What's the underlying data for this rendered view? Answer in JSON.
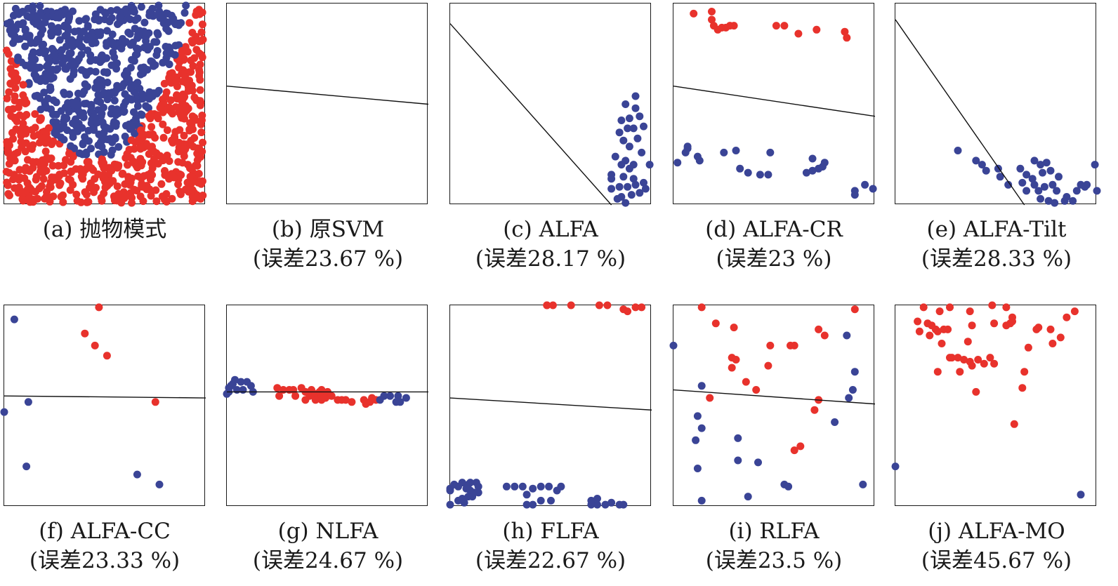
{
  "colors": {
    "red": "#e8322c",
    "blue": "#3a4496",
    "line": "#111111"
  },
  "chart_data": [
    {
      "type": "scatter",
      "caption": "(a) 抛物模式",
      "subtitle": "",
      "xlim": [
        0,
        1
      ],
      "ylim": [
        0,
        1
      ],
      "line": null,
      "blue_points": "generated-parabola-inner",
      "red_points": "generated-parabola-outer",
      "dataset": "parabola"
    },
    {
      "type": "scatter",
      "caption": "(b) 原SVM",
      "subtitle": "(误差23.67 %)",
      "xlim": [
        0,
        1
      ],
      "ylim": [
        0,
        1
      ],
      "line": [
        [
          0,
          0.41
        ],
        [
          1,
          0.5
        ]
      ],
      "red": [],
      "blue": []
    },
    {
      "type": "scatter",
      "caption": "(c) ALFA",
      "subtitle": "(误差28.17 %)",
      "xlim": [
        0,
        1
      ],
      "ylim": [
        0,
        1
      ],
      "line": [
        [
          0,
          0.1
        ],
        [
          0.8,
          1.0
        ]
      ],
      "red": [],
      "blue": [
        [
          0.92,
          0.46
        ],
        [
          0.87,
          0.5
        ],
        [
          0.92,
          0.52
        ],
        [
          0.85,
          0.58
        ],
        [
          0.94,
          0.56
        ],
        [
          0.89,
          0.57
        ],
        [
          0.96,
          0.61
        ],
        [
          0.88,
          0.62
        ],
        [
          0.91,
          0.62
        ],
        [
          0.84,
          0.64
        ],
        [
          0.93,
          0.67
        ],
        [
          0.86,
          0.68
        ],
        [
          0.89,
          0.71
        ],
        [
          0.95,
          0.74
        ],
        [
          0.82,
          0.76
        ],
        [
          0.87,
          0.78
        ],
        [
          0.91,
          0.8
        ],
        [
          0.85,
          0.8
        ],
        [
          0.89,
          0.82
        ],
        [
          0.99,
          0.8
        ],
        [
          0.8,
          0.85
        ],
        [
          0.86,
          0.86
        ],
        [
          0.91,
          0.87
        ],
        [
          0.96,
          0.89
        ],
        [
          0.92,
          0.9
        ],
        [
          0.84,
          0.91
        ],
        [
          0.88,
          0.91
        ],
        [
          0.97,
          0.92
        ],
        [
          0.8,
          0.92
        ],
        [
          0.9,
          0.95
        ],
        [
          0.85,
          0.96
        ],
        [
          0.94,
          0.94
        ],
        [
          0.87,
          0.99
        ],
        [
          0.8,
          0.87
        ],
        [
          0.83,
          0.97
        ]
      ]
    },
    {
      "type": "scatter",
      "caption": "(d) ALFA-CR",
      "subtitle": "(误差23 %)",
      "xlim": [
        0,
        1
      ],
      "ylim": [
        0,
        1
      ],
      "line": [
        [
          0,
          0.41
        ],
        [
          1,
          0.56
        ]
      ],
      "red": [
        [
          0.1,
          0.05
        ],
        [
          0.19,
          0.04
        ],
        [
          0.19,
          0.08
        ],
        [
          0.2,
          0.11
        ],
        [
          0.22,
          0.13
        ],
        [
          0.24,
          0.12
        ],
        [
          0.26,
          0.12
        ],
        [
          0.28,
          0.11
        ],
        [
          0.3,
          0.11
        ],
        [
          0.51,
          0.11
        ],
        [
          0.55,
          0.11
        ],
        [
          0.62,
          0.15
        ],
        [
          0.71,
          0.13
        ],
        [
          0.85,
          0.14
        ],
        [
          0.86,
          0.17
        ]
      ],
      "blue": [
        [
          0.07,
          0.71
        ],
        [
          0.06,
          0.74
        ],
        [
          0.07,
          0.72
        ],
        [
          0.12,
          0.76
        ],
        [
          0.13,
          0.78
        ],
        [
          0.25,
          0.74
        ],
        [
          0.31,
          0.73
        ],
        [
          0.48,
          0.74
        ],
        [
          0.33,
          0.82
        ],
        [
          0.37,
          0.84
        ],
        [
          0.43,
          0.85
        ],
        [
          0.47,
          0.85
        ],
        [
          0.66,
          0.84
        ],
        [
          0.69,
          0.83
        ],
        [
          0.72,
          0.82
        ],
        [
          0.74,
          0.81
        ],
        [
          0.69,
          0.77
        ],
        [
          0.75,
          0.79
        ],
        [
          0.02,
          0.79
        ],
        [
          0.9,
          0.93
        ],
        [
          0.95,
          0.9
        ],
        [
          0.99,
          0.92
        ],
        [
          0.9,
          0.95
        ]
      ]
    },
    {
      "type": "scatter",
      "caption": "(e) ALFA-Tilt",
      "subtitle": "(误差28.33 %)",
      "xlim": [
        0,
        1
      ],
      "ylim": [
        0,
        1
      ],
      "line": [
        [
          0,
          0.08
        ],
        [
          0.64,
          1.0
        ]
      ],
      "red": [],
      "blue": [
        [
          0.31,
          0.73
        ],
        [
          0.4,
          0.78
        ],
        [
          0.43,
          0.8
        ],
        [
          0.45,
          0.83
        ],
        [
          0.51,
          0.82
        ],
        [
          0.52,
          0.86
        ],
        [
          0.56,
          0.9
        ],
        [
          0.62,
          0.82
        ],
        [
          0.65,
          0.85
        ],
        [
          0.68,
          0.87
        ],
        [
          0.69,
          0.78
        ],
        [
          0.72,
          0.8
        ],
        [
          0.73,
          0.84
        ],
        [
          0.69,
          0.9
        ],
        [
          0.71,
          0.93
        ],
        [
          0.75,
          0.79
        ],
        [
          0.77,
          0.83
        ],
        [
          0.81,
          0.86
        ],
        [
          0.78,
          0.9
        ],
        [
          0.74,
          0.91
        ],
        [
          0.8,
          0.93
        ],
        [
          0.85,
          0.96
        ],
        [
          0.9,
          0.93
        ],
        [
          0.92,
          0.9
        ],
        [
          0.95,
          0.9
        ],
        [
          0.88,
          0.98
        ],
        [
          0.84,
          0.98
        ],
        [
          0.76,
          0.98
        ],
        [
          0.79,
          0.99
        ],
        [
          0.63,
          0.89
        ],
        [
          0.65,
          0.93
        ],
        [
          0.72,
          0.97
        ],
        [
          0.99,
          0.8
        ],
        [
          0.94,
          0.91
        ],
        [
          1.0,
          0.93
        ]
      ]
    },
    {
      "type": "scatter",
      "caption": "(f) ALFA-CC",
      "subtitle": "(误差23.33 %)",
      "xlim": [
        0,
        1
      ],
      "ylim": [
        0,
        1
      ],
      "line": [
        [
          0,
          0.45
        ],
        [
          1,
          0.46
        ]
      ],
      "red": [
        [
          0.47,
          0.01
        ],
        [
          0.4,
          0.14
        ],
        [
          0.45,
          0.2
        ],
        [
          0.51,
          0.25
        ],
        [
          0.75,
          0.48
        ]
      ],
      "blue": [
        [
          0.05,
          0.07
        ],
        [
          0.12,
          0.48
        ],
        [
          0.0,
          0.53
        ],
        [
          0.11,
          0.8
        ],
        [
          0.66,
          0.84
        ],
        [
          0.77,
          0.89
        ]
      ]
    },
    {
      "type": "scatter",
      "caption": "(g) NLFA",
      "subtitle": "(误差24.67 %)",
      "xlim": [
        0,
        1
      ],
      "ylim": [
        0,
        1
      ],
      "line": [
        [
          0,
          0.43
        ],
        [
          1,
          0.43
        ]
      ],
      "red": [
        [
          0.25,
          0.41
        ],
        [
          0.26,
          0.45
        ],
        [
          0.28,
          0.42
        ],
        [
          0.33,
          0.42
        ],
        [
          0.34,
          0.45
        ],
        [
          0.37,
          0.41
        ],
        [
          0.39,
          0.43
        ],
        [
          0.41,
          0.45
        ],
        [
          0.42,
          0.42
        ],
        [
          0.44,
          0.44
        ],
        [
          0.45,
          0.46
        ],
        [
          0.46,
          0.43
        ],
        [
          0.47,
          0.42
        ],
        [
          0.48,
          0.44
        ],
        [
          0.49,
          0.46
        ],
        [
          0.5,
          0.43
        ],
        [
          0.52,
          0.45
        ],
        [
          0.55,
          0.47
        ],
        [
          0.57,
          0.47
        ],
        [
          0.59,
          0.47
        ],
        [
          0.62,
          0.48
        ],
        [
          0.68,
          0.47
        ],
        [
          0.69,
          0.49
        ],
        [
          0.71,
          0.48
        ],
        [
          0.72,
          0.46
        ],
        [
          0.74,
          0.47
        ],
        [
          0.47,
          0.47
        ],
        [
          0.39,
          0.47
        ],
        [
          0.44,
          0.47
        ],
        [
          0.31,
          0.42
        ]
      ],
      "blue": [
        [
          0.01,
          0.43
        ],
        [
          0.02,
          0.4
        ],
        [
          0.03,
          0.39
        ],
        [
          0.04,
          0.37
        ],
        [
          0.05,
          0.42
        ],
        [
          0.07,
          0.38
        ],
        [
          0.08,
          0.42
        ],
        [
          0.1,
          0.38
        ],
        [
          0.12,
          0.4
        ],
        [
          0.13,
          0.43
        ],
        [
          0.0,
          0.44
        ],
        [
          0.78,
          0.45
        ],
        [
          0.81,
          0.45
        ],
        [
          0.85,
          0.45
        ],
        [
          0.89,
          0.46
        ],
        [
          0.84,
          0.48
        ],
        [
          0.86,
          0.48
        ],
        [
          0.76,
          0.47
        ],
        [
          0.01,
          0.41
        ]
      ]
    },
    {
      "type": "scatter",
      "caption": "(h) FLFA",
      "subtitle": "(误差22.67 %)",
      "xlim": [
        0,
        1
      ],
      "ylim": [
        0,
        1
      ],
      "line": [
        [
          0,
          0.46
        ],
        [
          1,
          0.52
        ]
      ],
      "red": [
        [
          0.48,
          0.0
        ],
        [
          0.51,
          0.0
        ],
        [
          0.6,
          0.0
        ],
        [
          0.74,
          0.0
        ],
        [
          0.78,
          0.0
        ],
        [
          0.86,
          0.02
        ],
        [
          0.88,
          0.03
        ],
        [
          0.92,
          0.01
        ],
        [
          0.95,
          0.01
        ],
        [
          0.48,
          0.0
        ]
      ],
      "blue": [
        [
          0.0,
          0.91
        ],
        [
          0.04,
          0.9
        ],
        [
          0.06,
          0.88
        ],
        [
          0.08,
          0.91
        ],
        [
          0.09,
          0.89
        ],
        [
          0.1,
          0.88
        ],
        [
          0.1,
          0.92
        ],
        [
          0.13,
          0.88
        ],
        [
          0.14,
          0.9
        ],
        [
          0.0,
          0.99
        ],
        [
          0.04,
          0.97
        ],
        [
          0.07,
          0.98
        ],
        [
          0.11,
          0.95
        ],
        [
          0.12,
          0.93
        ],
        [
          0.06,
          0.96
        ],
        [
          0.09,
          0.95
        ],
        [
          0.28,
          0.9
        ],
        [
          0.32,
          0.9
        ],
        [
          0.36,
          0.9
        ],
        [
          0.38,
          0.94
        ],
        [
          0.41,
          0.91
        ],
        [
          0.45,
          0.9
        ],
        [
          0.49,
          0.9
        ],
        [
          0.53,
          0.92
        ],
        [
          0.55,
          0.9
        ],
        [
          0.38,
          0.99
        ],
        [
          0.41,
          0.99
        ],
        [
          0.45,
          0.97
        ],
        [
          0.5,
          0.97
        ],
        [
          0.7,
          0.97
        ],
        [
          0.73,
          0.99
        ],
        [
          0.77,
          0.99
        ],
        [
          0.8,
          0.98
        ],
        [
          0.84,
          0.99
        ],
        [
          0.86,
          0.99
        ],
        [
          0.7,
          0.99
        ],
        [
          0.73,
          0.96
        ],
        [
          0.0,
          0.92
        ],
        [
          0.02,
          0.89
        ],
        [
          0.14,
          0.93
        ]
      ]
    },
    {
      "type": "scatter",
      "caption": "(i) RLFA",
      "subtitle": "(误差23.5 %)",
      "xlim": [
        0,
        1
      ],
      "ylim": [
        0,
        1
      ],
      "line": [
        [
          0,
          0.42
        ],
        [
          1,
          0.49
        ]
      ],
      "red": [
        [
          0.14,
          0.01
        ],
        [
          0.21,
          0.09
        ],
        [
          0.3,
          0.11
        ],
        [
          0.29,
          0.26
        ],
        [
          0.31,
          0.27
        ],
        [
          0.29,
          0.31
        ],
        [
          0.48,
          0.2
        ],
        [
          0.58,
          0.2
        ],
        [
          0.6,
          0.2
        ],
        [
          0.47,
          0.3
        ],
        [
          0.36,
          0.38
        ],
        [
          0.41,
          0.42
        ],
        [
          0.72,
          0.12
        ],
        [
          0.75,
          0.15
        ],
        [
          0.9,
          0.02
        ],
        [
          0.18,
          0.46
        ],
        [
          0.72,
          0.47
        ],
        [
          0.7,
          0.52
        ],
        [
          0.63,
          0.7
        ],
        [
          0.6,
          0.72
        ]
      ],
      "blue": [
        [
          0.0,
          0.2
        ],
        [
          0.14,
          0.4
        ],
        [
          0.86,
          0.15
        ],
        [
          0.9,
          0.33
        ],
        [
          0.89,
          0.42
        ],
        [
          0.87,
          0.46
        ],
        [
          0.12,
          0.55
        ],
        [
          0.14,
          0.61
        ],
        [
          0.11,
          0.67
        ],
        [
          0.32,
          0.66
        ],
        [
          0.32,
          0.77
        ],
        [
          0.42,
          0.78
        ],
        [
          0.12,
          0.81
        ],
        [
          0.55,
          0.89
        ],
        [
          0.57,
          0.9
        ],
        [
          0.94,
          0.89
        ],
        [
          0.14,
          0.97
        ],
        [
          0.37,
          0.95
        ],
        [
          0.8,
          0.58
        ]
      ]
    },
    {
      "type": "scatter",
      "caption": "(j) ALFA-MO",
      "subtitle": "(误差45.67 %)",
      "xlim": [
        0,
        1
      ],
      "ylim": [
        0,
        1
      ],
      "line": null,
      "red": [
        [
          0.14,
          0.01
        ],
        [
          0.22,
          0.03
        ],
        [
          0.27,
          0.01
        ],
        [
          0.37,
          0.03
        ],
        [
          0.48,
          0.0
        ],
        [
          0.55,
          0.01
        ],
        [
          0.58,
          0.08
        ],
        [
          0.57,
          0.09
        ],
        [
          0.89,
          0.03
        ],
        [
          0.85,
          0.06
        ],
        [
          0.11,
          0.08
        ],
        [
          0.18,
          0.1
        ],
        [
          0.21,
          0.13
        ],
        [
          0.24,
          0.12
        ],
        [
          0.26,
          0.12
        ],
        [
          0.2,
          0.12
        ],
        [
          0.38,
          0.1
        ],
        [
          0.49,
          0.09
        ],
        [
          0.55,
          0.1
        ],
        [
          0.7,
          0.12
        ],
        [
          0.71,
          0.11
        ],
        [
          0.77,
          0.12
        ],
        [
          0.82,
          0.16
        ],
        [
          0.78,
          0.19
        ],
        [
          0.66,
          0.21
        ],
        [
          0.17,
          0.15
        ],
        [
          0.23,
          0.19
        ],
        [
          0.36,
          0.18
        ],
        [
          0.28,
          0.26
        ],
        [
          0.31,
          0.26
        ],
        [
          0.34,
          0.27
        ],
        [
          0.37,
          0.28
        ],
        [
          0.41,
          0.27
        ],
        [
          0.44,
          0.29
        ],
        [
          0.47,
          0.26
        ],
        [
          0.49,
          0.29
        ],
        [
          0.38,
          0.3
        ],
        [
          0.21,
          0.33
        ],
        [
          0.27,
          0.26
        ],
        [
          0.32,
          0.33
        ],
        [
          0.64,
          0.33
        ],
        [
          0.63,
          0.41
        ],
        [
          0.4,
          0.43
        ],
        [
          0.59,
          0.59
        ],
        [
          0.16,
          0.09
        ],
        [
          0.12,
          0.13
        ],
        [
          0.58,
          0.06
        ]
      ],
      "blue": [
        [
          0.0,
          0.8
        ],
        [
          0.92,
          0.94
        ]
      ]
    }
  ]
}
